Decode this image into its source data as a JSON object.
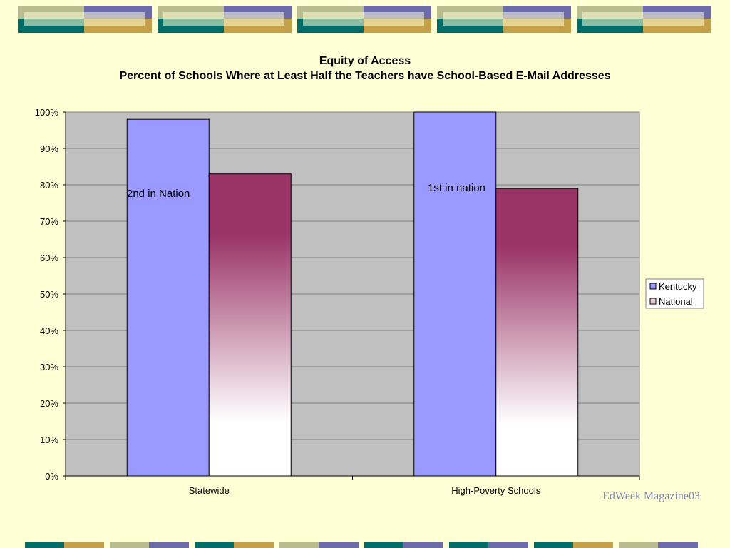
{
  "colors": {
    "background": "#FFFFD5",
    "plot_area": "#C0C0C0",
    "kentucky": "#9999FF",
    "national_top": "#993366",
    "national_bottom": "#FFFFFF",
    "credit": "#7F86B8",
    "deco_teal": "#006E66",
    "deco_gold": "#C4A04A",
    "deco_purple": "#6B6BA8",
    "deco_sage": "#B8BC8E"
  },
  "chart_data": {
    "type": "bar",
    "title": "Equity of Access",
    "subtitle": "Percent of Schools Where at Least Half the Teachers have School-Based E-Mail Addresses",
    "categories": [
      "Statewide",
      "High-Poverty Schools"
    ],
    "series": [
      {
        "name": "Kentucky",
        "values": [
          98,
          100
        ]
      },
      {
        "name": "National",
        "values": [
          83,
          79
        ]
      }
    ],
    "ylim": [
      0,
      100
    ],
    "yticks": [
      "0%",
      "10%",
      "20%",
      "30%",
      "40%",
      "50%",
      "60%",
      "70%",
      "80%",
      "90%",
      "100%"
    ],
    "grid": true,
    "legend_position": "right",
    "annotations": [
      "2nd in Nation",
      "1st in nation"
    ]
  },
  "credit": "EdWeek Magazine03"
}
